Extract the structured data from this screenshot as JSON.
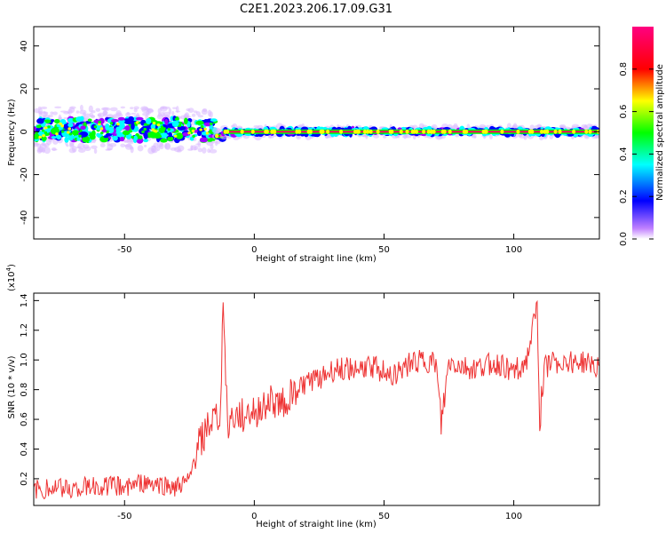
{
  "title": "C2E1.2023.206.17.09.G31",
  "colors": {
    "snr_line": "#ee3333",
    "background": "#ffffff"
  },
  "chart_data": [
    {
      "type": "heatmap",
      "xlabel": "Height of straight line (km)",
      "ylabel": "Frequency (Hz)",
      "xlim": [
        -85,
        133
      ],
      "ylim": [
        -50,
        49
      ],
      "xticks": [
        -50,
        0,
        50,
        100
      ],
      "yticks": [
        -40,
        -20,
        0,
        20,
        40
      ],
      "colorbar": {
        "label": "Normalized spectral amplitude",
        "range": [
          0.0,
          1.0
        ],
        "ticks": [
          "0.0",
          "0.2",
          "0.4",
          "0.6",
          "0.8"
        ],
        "colors": [
          "#ffffff",
          "#a000ff",
          "#0000ff",
          "#00ffff",
          "#00ff00",
          "#ffff00",
          "#ff0000",
          "#ff0080"
        ]
      },
      "segments": [
        {
          "x_start": -85,
          "x_end": -15,
          "center_freq": 1,
          "spread_hz": 8
        },
        {
          "x_start": -15,
          "x_end": -12,
          "center_freq": -2,
          "spread_hz": 3
        },
        {
          "x_start": -12,
          "x_end": 133,
          "center_freq": 0,
          "spread_hz": 2
        }
      ]
    },
    {
      "type": "line",
      "xlabel": "Height of straight line (km)",
      "ylabel": "SNR (10 * v/v)",
      "y_scale_label": "(x10",
      "y_scale_exp": "4",
      "y_scale_close": ")",
      "xlim": [
        -85,
        133
      ],
      "ylim": [
        0.02,
        1.45
      ],
      "xticks": [
        -50,
        0,
        50,
        100
      ],
      "yticks": [
        0.2,
        0.4,
        0.6,
        0.8,
        1.0,
        1.2,
        1.4
      ],
      "series": [
        {
          "x": [
            -85,
            -80,
            -75,
            -70,
            -65,
            -60,
            -55,
            -50,
            -45,
            -40,
            -35,
            -30,
            -25,
            -22,
            -20,
            -18,
            -15,
            -13,
            -12,
            -11,
            -10,
            -5,
            0,
            5,
            10,
            15,
            20,
            25,
            30,
            35,
            40,
            45,
            50,
            55,
            60,
            65,
            70,
            72,
            75,
            80,
            85,
            90,
            95,
            100,
            105,
            109,
            110,
            112,
            115,
            120,
            125,
            130,
            133
          ],
          "y": [
            0.12,
            0.13,
            0.14,
            0.14,
            0.15,
            0.15,
            0.16,
            0.15,
            0.16,
            0.17,
            0.15,
            0.15,
            0.17,
            0.42,
            0.48,
            0.55,
            0.6,
            0.62,
            1.45,
            0.85,
            0.58,
            0.62,
            0.65,
            0.72,
            0.7,
            0.78,
            0.85,
            0.87,
            0.92,
            0.95,
            0.93,
            0.96,
            0.92,
            0.9,
            0.98,
            0.99,
            0.97,
            0.55,
            0.98,
            0.95,
            0.93,
            0.97,
            0.96,
            0.92,
            0.99,
            1.35,
            0.6,
            0.95,
            0.98,
            0.99,
            0.98,
            0.97,
            0.96
          ]
        }
      ]
    }
  ]
}
